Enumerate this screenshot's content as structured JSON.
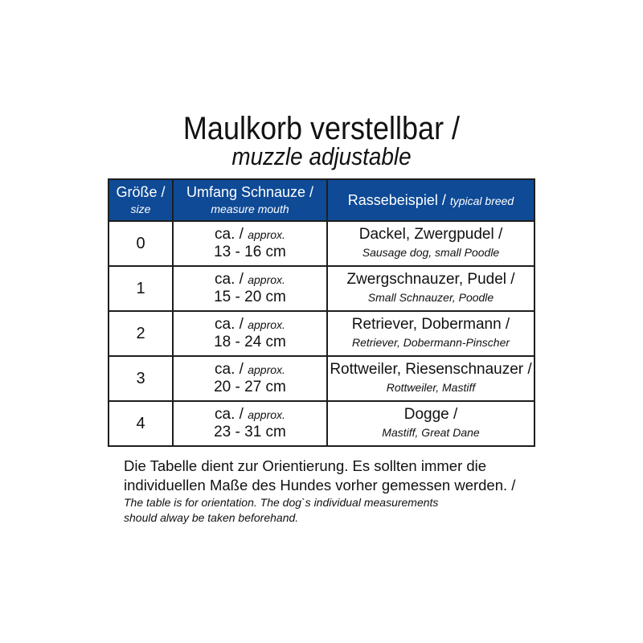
{
  "title": "Maulkorb verstellbar /",
  "subtitle": "muzzle adjustable",
  "header": {
    "size_de": "Größe /",
    "size_en": "size",
    "mouth_de": "Umfang Schnauze /",
    "mouth_en": "measure mouth",
    "breed_de": "Rassebeispiel /",
    "breed_en": "typical breed"
  },
  "rows": [
    {
      "size": "0",
      "ca": "ca. /",
      "approx": "approx.",
      "range": "13 - 16 cm",
      "breed_de": "Dackel, Zwergpudel /",
      "breed_en": "Sausage dog, small Poodle"
    },
    {
      "size": "1",
      "ca": "ca. /",
      "approx": "approx.",
      "range": "15 - 20 cm",
      "breed_de": "Zwergschnauzer, Pudel /",
      "breed_en": "Small Schnauzer, Poodle"
    },
    {
      "size": "2",
      "ca": "ca. /",
      "approx": "approx.",
      "range": "18 - 24 cm",
      "breed_de": "Retriever, Dobermann /",
      "breed_en": "Retriever, Dobermann-Pinscher"
    },
    {
      "size": "3",
      "ca": "ca. /",
      "approx": "approx.",
      "range": "20 - 27 cm",
      "breed_de": "Rottweiler, Riesenschnauzer /",
      "breed_en": "Rottweiler, Mastiff"
    },
    {
      "size": "4",
      "ca": "ca. /",
      "approx": "approx.",
      "range": "23 - 31 cm",
      "breed_de": "Dogge /",
      "breed_en": "Mastiff, Great Dane"
    }
  ],
  "note": {
    "de1": "Die Tabelle dient zur Orientierung. Es sollten immer die",
    "de2": "individuellen Maße des Hundes vorher gemessen werden. /",
    "en1": "The table is for orientation. The dog`s individual measurements",
    "en2": "should alway be taken beforehand."
  },
  "colors": {
    "header_bg": "#0e4a96"
  }
}
